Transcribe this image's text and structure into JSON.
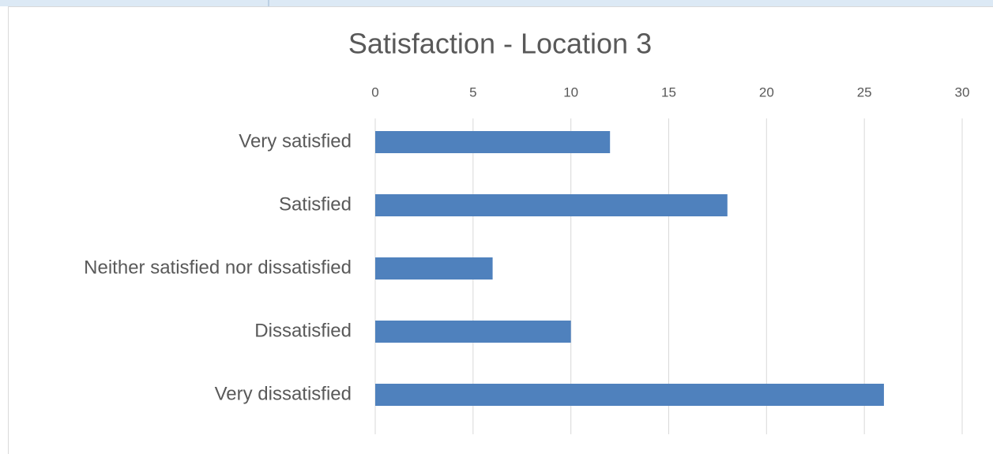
{
  "chart_data": {
    "type": "barh",
    "title": "Satisfaction - Location 3",
    "categories": [
      "Very satisfied",
      "Satisfied",
      "Neither satisfied nor dissatisfied",
      "Dissatisfied",
      "Very dissatisfied"
    ],
    "values": [
      12,
      18,
      6,
      10,
      26
    ],
    "color": "#4f81bd",
    "xlim": [
      0,
      30
    ],
    "xticks": [
      0,
      5,
      10,
      15,
      20,
      25,
      30
    ],
    "grid": true
  }
}
